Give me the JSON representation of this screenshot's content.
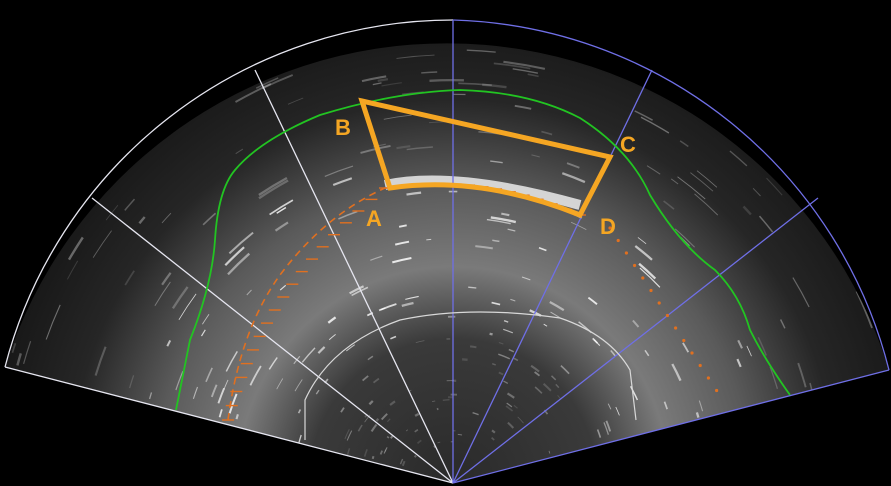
{
  "image": {
    "description_free": true
  },
  "labels": {
    "a": "A",
    "b": "B",
    "c": "C",
    "d": "D"
  },
  "colors": {
    "background": "#000000",
    "left_sector_lines": "#e6e6f0",
    "right_sector_lines": "#6f6fe6",
    "green_contour": "#22c422",
    "white_contour": "#d8d8d8",
    "orange_markup": "#f5a623",
    "marker_line": "#e07020",
    "label_text": "#f5a623"
  }
}
